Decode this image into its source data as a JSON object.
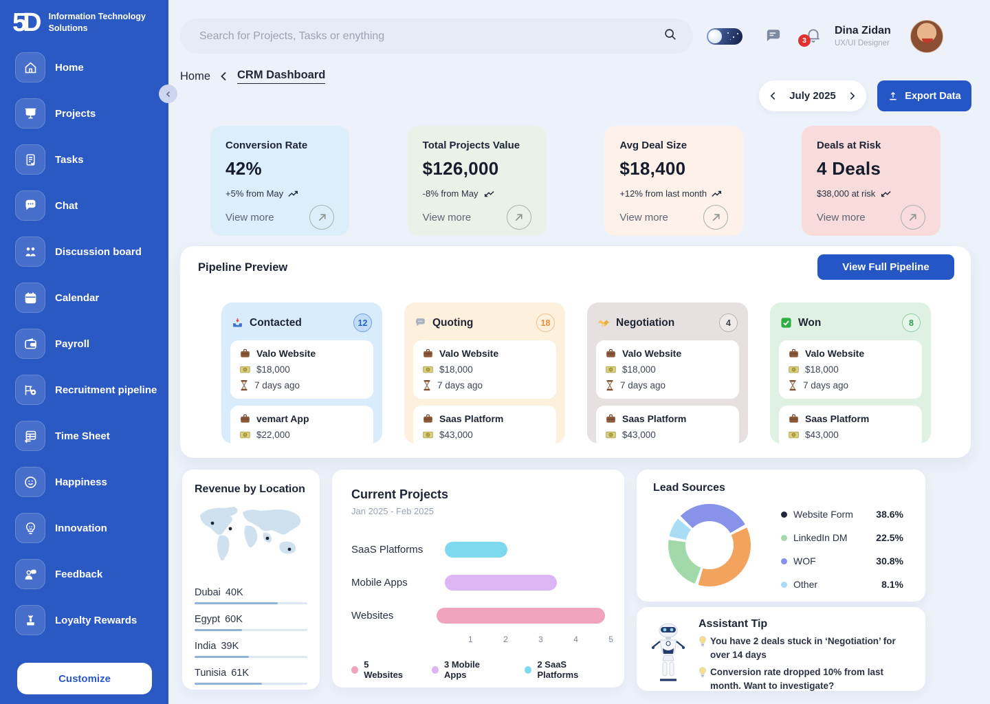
{
  "brand": {
    "logo_text": "5D",
    "name": "Information Technology Solutions"
  },
  "sidebar": {
    "items": [
      {
        "label": "Home",
        "icon": "home-icon"
      },
      {
        "label": "Projects",
        "icon": "projects-icon"
      },
      {
        "label": "Tasks",
        "icon": "tasks-icon"
      },
      {
        "label": "Chat",
        "icon": "chat-icon"
      },
      {
        "label": "Discussion board",
        "icon": "discussion-icon"
      },
      {
        "label": "Calendar",
        "icon": "calendar-icon"
      },
      {
        "label": "Payroll",
        "icon": "wallet-icon"
      },
      {
        "label": "Recruitment pipeline",
        "icon": "pipeline-icon"
      },
      {
        "label": "Time Sheet",
        "icon": "timesheet-icon"
      },
      {
        "label": "Happiness",
        "icon": "smiley-icon"
      },
      {
        "label": "Innovation",
        "icon": "bulb-icon"
      },
      {
        "label": "Feedback",
        "icon": "feedback-icon"
      },
      {
        "label": "Loyalty Rewards",
        "icon": "podium-icon"
      }
    ],
    "customize": "Customize"
  },
  "topbar": {
    "search_placeholder": "Search for Projects, Tasks or enything",
    "notification_count": "3",
    "user": {
      "name": "Dina Zidan",
      "role": "UX/UI Designer"
    }
  },
  "breadcrumb": {
    "parent": "Home",
    "current": "CRM Dashboard"
  },
  "header_controls": {
    "month": "July 2025",
    "export": "Export Data"
  },
  "stats": [
    {
      "title": "Conversion Rate",
      "value": "42%",
      "change": "+5% from May",
      "trend": "up",
      "link": "View more",
      "bg": "#ddeefb"
    },
    {
      "title": "Total Projects Value",
      "value": "$126,000",
      "change": "-8% from May",
      "trend": "down",
      "link": "View more",
      "bg": "#e8f2e8"
    },
    {
      "title": "Avg Deal Size",
      "value": "$18,400",
      "change": "+12% from last month",
      "trend": "up",
      "link": "View more",
      "bg": "#fdf1e9"
    },
    {
      "title": "Deals at Risk",
      "value": "4 Deals",
      "change": "$38,000 at risk",
      "trend": "down",
      "link": "View more",
      "bg": "#f8dcdc"
    }
  ],
  "pipeline": {
    "title": "Pipeline Preview",
    "cta": "View Full Pipeline",
    "columns": [
      {
        "name": "Contacted",
        "count": "12",
        "icon": "inbox-tray-icon",
        "deals": [
          {
            "name": "Valo Website",
            "amount": "$18,000",
            "age": "7 days ago"
          },
          {
            "name": "vemart App",
            "amount": "$22,000"
          }
        ]
      },
      {
        "name": "Quoting",
        "count": "18",
        "icon": "speech-bubble-icon",
        "deals": [
          {
            "name": "Valo Website",
            "amount": "$18,000",
            "age": "7 days ago"
          },
          {
            "name": "Saas Platform",
            "amount": "$43,000"
          }
        ]
      },
      {
        "name": "Negotiation",
        "count": "4",
        "icon": "handshake-icon",
        "deals": [
          {
            "name": "Valo Website",
            "amount": "$18,000",
            "age": "7 days ago"
          },
          {
            "name": "Saas Platform",
            "amount": "$43,000"
          }
        ]
      },
      {
        "name": "Won",
        "count": "8",
        "icon": "check-box-icon",
        "deals": [
          {
            "name": "Valo Website",
            "amount": "$18,000",
            "age": "7 days ago"
          },
          {
            "name": "Saas Platform",
            "amount": "$43,000"
          }
        ]
      }
    ]
  },
  "revenue": {
    "title": "Revenue by Location",
    "locations": [
      {
        "name": "Dubai",
        "value": "40K",
        "fill_pct": 74
      },
      {
        "name": "Egypt",
        "value": "60K",
        "fill_pct": 42
      },
      {
        "name": "India",
        "value": "39K",
        "fill_pct": 48
      },
      {
        "name": "Tunisia",
        "value": "61K",
        "fill_pct": 60
      }
    ]
  },
  "chart_data": [
    {
      "type": "bar",
      "orientation": "horizontal",
      "title": "Current Projects",
      "subtitle": "Jan 2025 - Feb 2025",
      "categories": [
        "SaaS Platforms",
        "Mobile Apps",
        "Websites"
      ],
      "values": [
        2,
        3,
        5
      ],
      "drawn_units": [
        1.9,
        3.4,
        5.6
      ],
      "xticks": [
        1,
        2,
        3,
        4,
        5
      ],
      "xlim": [
        0,
        5.8
      ],
      "grid": false,
      "colors": [
        "#7fd9ee",
        "#ddb5f4",
        "#f0a3bd"
      ],
      "legend": [
        "5 Websites",
        "3 Mobile Apps",
        "2 SaaS Platforms"
      ],
      "legend_colors": [
        "#f0a3bd",
        "#ddb5f4",
        "#7fd9ee"
      ],
      "legend_position": "bottom"
    },
    {
      "type": "pie",
      "donut": true,
      "title": "Lead Sources",
      "labels": [
        "Website Form",
        "LinkedIn DM",
        "WOF",
        "Other"
      ],
      "values": [
        38.6,
        22.5,
        30.8,
        8.1
      ],
      "segment_order_clockwise_from_top_left": [
        "WOF",
        "Website Form",
        "LinkedIn DM",
        "Other"
      ],
      "segment_colors": [
        "#8793e8",
        "#f2a45f",
        "#a2d9ab",
        "#a9ddf6"
      ],
      "bullet_colors": [
        "#22283a",
        "#a2d9ab",
        "#8793e8",
        "#a9ddf6"
      ],
      "legend_position": "right"
    },
    {
      "type": "bar",
      "title": "Revenue by Location",
      "categories": [
        "Dubai",
        "Egypt",
        "India",
        "Tunisia"
      ],
      "values": [
        40,
        60,
        39,
        61
      ],
      "unit": "K"
    }
  ],
  "lead_sources": {
    "title": "Lead Sources",
    "items": [
      {
        "label": "Website Form",
        "value": "38.6%"
      },
      {
        "label": "LinkedIn DM",
        "value": "22.5%"
      },
      {
        "label": "WOF",
        "value": "30.8%"
      },
      {
        "label": "Other",
        "value": "8.1%"
      }
    ]
  },
  "assistant": {
    "title": "Assistant Tip",
    "tip1": "You have 2 deals stuck in ‘Negotiation’ for over 14 days",
    "tip2": "Conversion rate dropped 10% from last month. Want to investigate?"
  }
}
